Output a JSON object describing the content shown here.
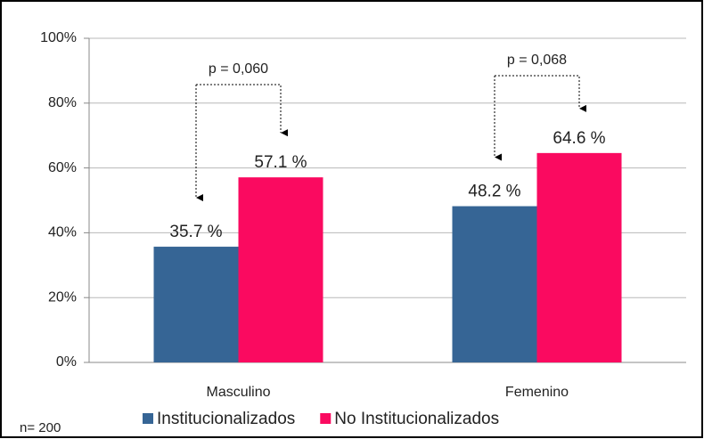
{
  "chart_data": {
    "type": "bar",
    "categories": [
      "Masculino",
      "Femenino"
    ],
    "series": [
      {
        "name": "Institucionalizados",
        "color": "#366595",
        "values": [
          35.7,
          48.2
        ],
        "value_labels": [
          "35.7 %",
          "48.2 %"
        ]
      },
      {
        "name": "No Institucionalizados",
        "color": "#fa0a60",
        "values": [
          57.1,
          64.6
        ],
        "value_labels": [
          "57.1 %",
          "64.6 %"
        ]
      }
    ],
    "ylim": [
      0,
      100
    ],
    "yticks": [
      {
        "value": 0,
        "label": "0%"
      },
      {
        "value": 20,
        "label": "20%"
      },
      {
        "value": 40,
        "label": "40%"
      },
      {
        "value": 60,
        "label": "60%"
      },
      {
        "value": 80,
        "label": "80%"
      },
      {
        "value": 100,
        "label": "100%"
      }
    ],
    "grid": true,
    "legend": "bottom",
    "annotations": [
      "p = 0,060",
      "p = 0,068"
    ],
    "note": "n= 200"
  }
}
